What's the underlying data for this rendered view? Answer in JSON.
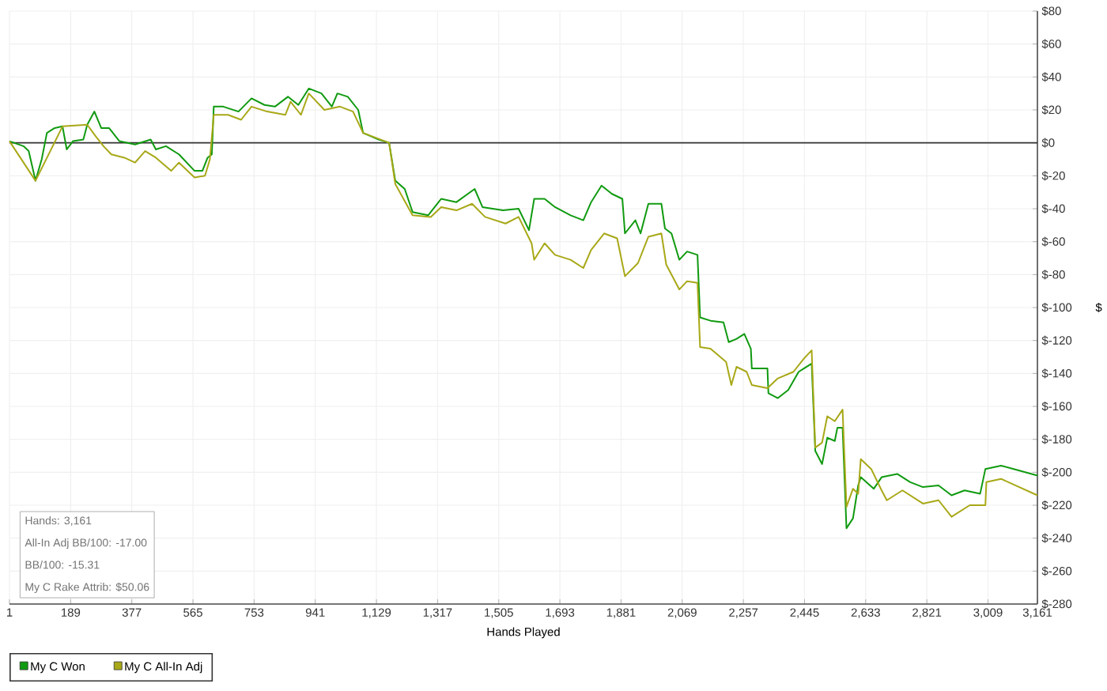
{
  "chart_data": {
    "type": "line",
    "xlabel": "Hands Played",
    "ylabel": "$",
    "series": [
      {
        "name": "My C Won",
        "color": "#109a10",
        "x": [
          1,
          44,
          60,
          81,
          100,
          116,
          140,
          164,
          177,
          196,
          228,
          240,
          262,
          283,
          307,
          339,
          387,
          435,
          451,
          482,
          522,
          570,
          594,
          610,
          623,
          629,
          658,
          705,
          745,
          785,
          817,
          857,
          889,
          921,
          960,
          992,
          1009,
          1041,
          1073,
          1088,
          1136,
          1168,
          1187,
          1216,
          1240,
          1288,
          1328,
          1375,
          1431,
          1455,
          1518,
          1566,
          1598,
          1614,
          1646,
          1678,
          1726,
          1765,
          1789,
          1821,
          1853,
          1885,
          1893,
          1925,
          1941,
          1965,
          2005,
          2016,
          2036,
          2060,
          2084,
          2116,
          2124,
          2156,
          2196,
          2212,
          2236,
          2260,
          2280,
          2283,
          2331,
          2334,
          2363,
          2395,
          2427,
          2467,
          2478,
          2499,
          2515,
          2538,
          2546,
          2562,
          2574,
          2594,
          2610,
          2618,
          2658,
          2682,
          2730,
          2770,
          2809,
          2857,
          2897,
          2937,
          2985,
          3001,
          3049,
          3088,
          3161
        ],
        "values": [
          1,
          -2,
          -5,
          -23,
          -10,
          6,
          9,
          10,
          -4,
          1,
          2,
          11,
          19,
          9,
          9,
          1,
          -1,
          2,
          -4,
          -2,
          -7,
          -17,
          -17,
          -9,
          -7,
          22,
          22,
          19,
          27,
          23,
          22,
          28,
          23,
          33,
          30,
          22,
          30,
          28,
          20,
          6,
          2,
          0,
          -23,
          -28,
          -42,
          -44,
          -34,
          -36,
          -28,
          -39,
          -41,
          -40,
          -53,
          -34,
          -34,
          -39,
          -44,
          -47,
          -36,
          -26,
          -31,
          -34,
          -55,
          -47,
          -55,
          -37,
          -37,
          -52,
          -55,
          -71,
          -66,
          -68,
          -106,
          -108,
          -109,
          -121,
          -119,
          -116,
          -125,
          -137,
          -137,
          -152,
          -155,
          -150,
          -139,
          -134,
          -187,
          -195,
          -179,
          -181,
          -173,
          -173,
          -234,
          -228,
          -208,
          -203,
          -210,
          -203,
          -201,
          -206,
          -209,
          -208,
          -214,
          -211,
          -213,
          -198,
          -196,
          -198,
          -202
        ]
      },
      {
        "name": "My C All-In Adj",
        "color": "#a8a818",
        "x": [
          1,
          81,
          164,
          240,
          266,
          290,
          314,
          354,
          387,
          418,
          451,
          498,
          522,
          570,
          602,
          617,
          629,
          673,
          713,
          745,
          793,
          849,
          865,
          897,
          921,
          969,
          1017,
          1057,
          1088,
          1168,
          1187,
          1240,
          1296,
          1328,
          1375,
          1423,
          1463,
          1526,
          1566,
          1606,
          1614,
          1646,
          1678,
          1726,
          1765,
          1789,
          1829,
          1869,
          1893,
          1933,
          1965,
          2005,
          2020,
          2060,
          2084,
          2116,
          2124,
          2156,
          2204,
          2220,
          2236,
          2267,
          2283,
          2331,
          2363,
          2411,
          2443,
          2467,
          2478,
          2499,
          2515,
          2538,
          2562,
          2574,
          2594,
          2610,
          2618,
          2650,
          2682,
          2698,
          2746,
          2809,
          2857,
          2897,
          2953,
          3001,
          3004,
          3049,
          3161
        ],
        "values": [
          1,
          -23,
          10,
          11,
          4,
          -2,
          -7,
          -9,
          -12,
          -5,
          -9,
          -17,
          -12,
          -21,
          -20,
          -10,
          17,
          17,
          14,
          22,
          19,
          17,
          25,
          17,
          30,
          20,
          22,
          19,
          6,
          0,
          -25,
          -44,
          -45,
          -39,
          -41,
          -37,
          -45,
          -49,
          -45,
          -61,
          -71,
          -61,
          -68,
          -71,
          -76,
          -65,
          -55,
          -58,
          -81,
          -73,
          -57,
          -55,
          -74,
          -89,
          -84,
          -85,
          -124,
          -125,
          -133,
          -147,
          -136,
          -139,
          -147,
          -149,
          -143,
          -139,
          -131,
          -126,
          -185,
          -182,
          -166,
          -169,
          -162,
          -221,
          -210,
          -213,
          -192,
          -198,
          -211,
          -217,
          -211,
          -219,
          -217,
          -227,
          -220,
          -220,
          -206,
          -204,
          -214
        ]
      }
    ],
    "xlim": [
      1,
      3161
    ],
    "xticks": [
      1,
      189,
      377,
      565,
      753,
      941,
      {
        "value": 1129,
        "label": "1,129"
      },
      {
        "value": 1317,
        "label": "1,317"
      },
      {
        "value": 1505,
        "label": "1,505"
      },
      {
        "value": 1693,
        "label": "1,693"
      },
      {
        "value": 1881,
        "label": "1,881"
      },
      {
        "value": 2069,
        "label": "2,069"
      },
      {
        "value": 2257,
        "label": "2,257"
      },
      {
        "value": 2445,
        "label": "2,445"
      },
      {
        "value": 2633,
        "label": "2,633"
      },
      {
        "value": 2821,
        "label": "2,821"
      },
      {
        "value": 3009,
        "label": "3,009"
      },
      {
        "value": 3161,
        "label": "3,161"
      }
    ],
    "ylim": [
      -280,
      80
    ],
    "yticks": [
      {
        "value": -280,
        "label": "$-280"
      },
      {
        "value": -260,
        "label": "$-260"
      },
      {
        "value": -240,
        "label": "$-240"
      },
      {
        "value": -220,
        "label": "$-220"
      },
      {
        "value": -200,
        "label": "$-200"
      },
      {
        "value": -180,
        "label": "$-180"
      },
      {
        "value": -160,
        "label": "$-160"
      },
      {
        "value": -140,
        "label": "$-140"
      },
      {
        "value": -120,
        "label": "$-120"
      },
      {
        "value": -100,
        "label": "$-100"
      },
      {
        "value": -80,
        "label": "$-80"
      },
      {
        "value": -60,
        "label": "$-60"
      },
      {
        "value": -40,
        "label": "$-40"
      },
      {
        "value": -20,
        "label": "$-20"
      },
      {
        "value": 0,
        "label": "$0"
      },
      {
        "value": 20,
        "label": "$20"
      },
      {
        "value": 40,
        "label": "$40"
      },
      {
        "value": 60,
        "label": "$60"
      },
      {
        "value": 80,
        "label": "$80"
      }
    ],
    "ref_lines": [
      {
        "axis": "y",
        "value": 0,
        "color": "#333333"
      }
    ],
    "annotations": [
      "Hands: 3,161",
      "All-In Adj BB/100: -17.00",
      "BB/100: -15.31",
      "My C Rake Attrib: $50.06"
    ],
    "grid": true,
    "legend": "bottom left",
    "marker": "none",
    "line_style": "solid"
  }
}
